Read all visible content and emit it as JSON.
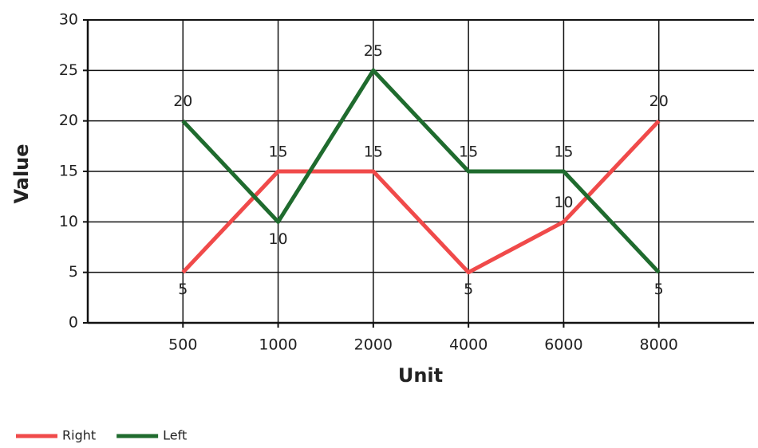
{
  "chart_data": {
    "type": "line",
    "x_label": "Unit",
    "y_label": "Value",
    "categories": [
      "500",
      "1000",
      "2000",
      "4000",
      "6000",
      "8000"
    ],
    "series": [
      {
        "name": "Right",
        "color": "#f04a4a",
        "values": [
          5,
          15,
          15,
          5,
          10,
          20
        ]
      },
      {
        "name": "Left",
        "color": "#1f6b2e",
        "values": [
          20,
          10,
          25,
          15,
          15,
          5
        ]
      }
    ],
    "ylim": [
      0,
      30
    ],
    "yticks": [
      0,
      5,
      10,
      15,
      20,
      25,
      30
    ],
    "grid": true,
    "data_labels": true,
    "legend": "bottom-left"
  }
}
